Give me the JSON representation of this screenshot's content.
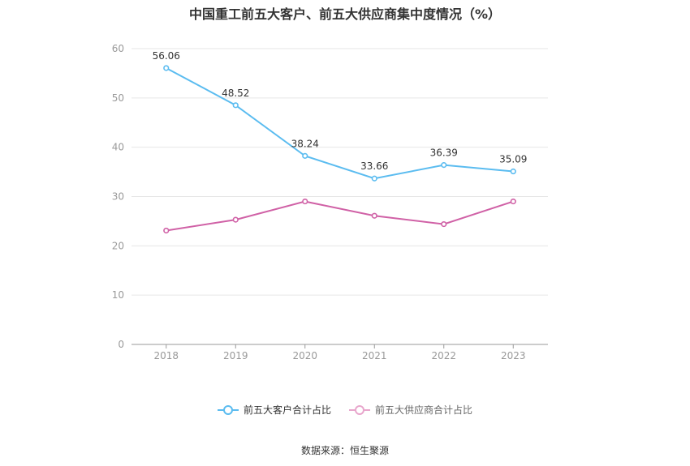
{
  "chart_data": {
    "type": "line",
    "title": "中国重工前五大客户、前五大供应商集中度情况（%）",
    "x": [
      "2018",
      "2019",
      "2020",
      "2021",
      "2022",
      "2023"
    ],
    "ylim": [
      0,
      60
    ],
    "yticks": [
      "0",
      "10",
      "20",
      "30",
      "40",
      "50",
      "60"
    ],
    "grid": true,
    "legend_position": "bottom-center",
    "series": [
      {
        "name": "前五大客户合计占比",
        "values": [
          56.06,
          48.52,
          38.24,
          33.66,
          36.39,
          35.09
        ],
        "labels": [
          "56.06",
          "48.52",
          "38.24",
          "33.66",
          "36.39",
          "35.09"
        ],
        "color": "#5bbcf0"
      },
      {
        "name": "前五大供应商合计占比",
        "values": [
          23.1,
          25.3,
          29.0,
          26.1,
          24.4,
          29.0
        ],
        "color": "#d061a6"
      }
    ],
    "source": "数据来源：恒生聚源"
  }
}
